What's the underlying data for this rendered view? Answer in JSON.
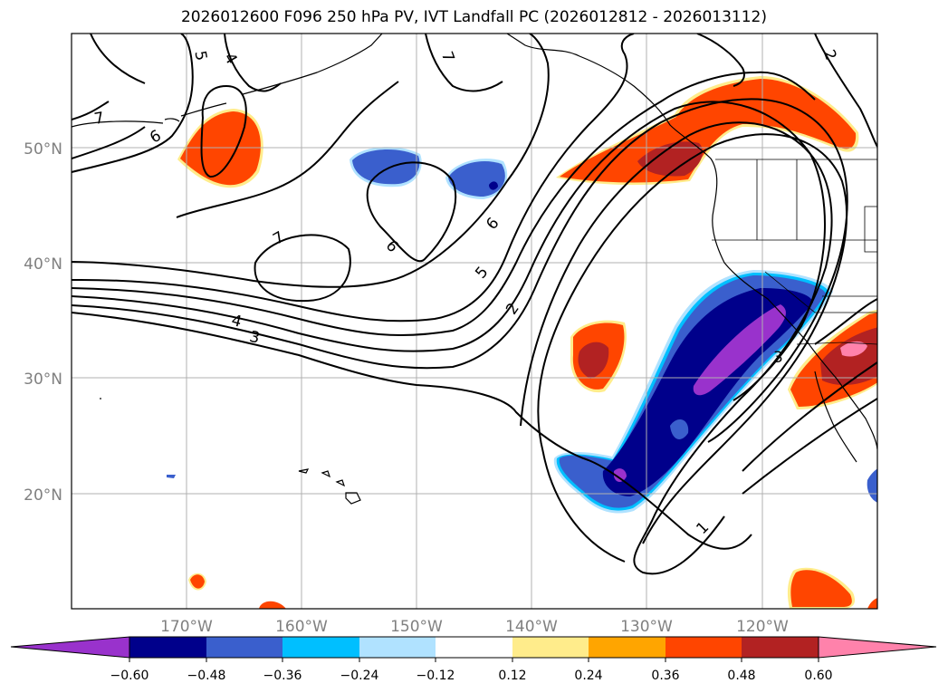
{
  "title": "2026012600 F096 250 hPa PV, IVT Landfall PC (2026012812 - 2026013112)",
  "colors": {
    "purple": "#9932cc",
    "navy": "#00008b",
    "royal": "#3a5fcd",
    "sky": "#00bfff",
    "pale_blue": "#b0e2ff",
    "yellow": "#ffec8b",
    "orange": "#ffa500",
    "red_orange": "#ff4500",
    "firebrick": "#b22222",
    "pink": "#ff82ab"
  },
  "lat_labels": [
    "50°N",
    "40°N",
    "30°N",
    "20°N"
  ],
  "lon_labels": [
    "170°W",
    "160°W",
    "150°W",
    "140°W",
    "130°W",
    "120°W"
  ],
  "contour_labels": [
    "5",
    "4",
    "7",
    "7",
    "6",
    "2",
    "7",
    "6",
    "6",
    "5",
    "2",
    "4",
    "3",
    "3",
    "1"
  ],
  "colorbar": {
    "ticks": [
      "−0.60",
      "−0.48",
      "−0.36",
      "−0.24",
      "−0.12",
      "0.12",
      "0.24",
      "0.36",
      "0.48",
      "0.60"
    ]
  }
}
